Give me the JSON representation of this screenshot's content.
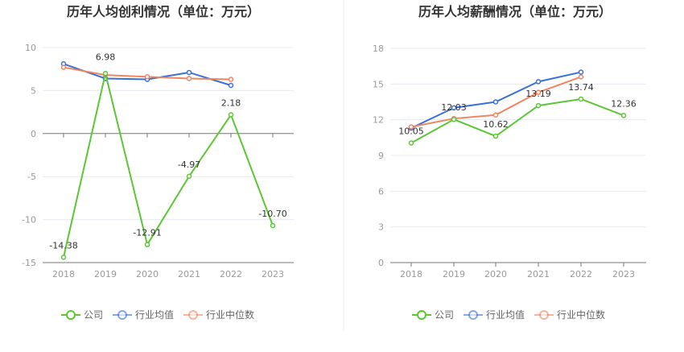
{
  "chart_data": [
    {
      "type": "line",
      "title": "历年人均创利情况（单位：万元）",
      "categories": [
        "2018",
        "2019",
        "2020",
        "2021",
        "2022",
        "2023"
      ],
      "ylim": [
        -15,
        10
      ],
      "yticks": [
        "10",
        "5",
        "0",
        "-5",
        "-10",
        "-15"
      ],
      "grid": true,
      "legend_position": "bottom",
      "series": [
        {
          "name": "公司",
          "color": "#5cc634",
          "values": [
            -14.38,
            6.98,
            -12.91,
            -4.97,
            2.18,
            -10.7
          ],
          "labels": [
            "-14.38",
            "6.98",
            "-12.91",
            "-4.97",
            "2.18",
            "-10.70"
          ]
        },
        {
          "name": "行业均值",
          "color": "#3a6fd8",
          "values": [
            8.1,
            6.4,
            6.3,
            7.1,
            5.6,
            null
          ]
        },
        {
          "name": "行业中位数",
          "color": "#f0845f",
          "values": [
            7.7,
            6.8,
            6.6,
            6.4,
            6.3,
            null
          ]
        }
      ]
    },
    {
      "type": "line",
      "title": "历年人均薪酬情况（单位：万元）",
      "categories": [
        "2018",
        "2019",
        "2020",
        "2021",
        "2022",
        "2023"
      ],
      "ylim": [
        0,
        18
      ],
      "yticks": [
        "18",
        "15",
        "12",
        "9",
        "6",
        "3",
        "0"
      ],
      "grid": true,
      "legend_position": "bottom",
      "series": [
        {
          "name": "公司",
          "color": "#5cc634",
          "values": [
            10.05,
            12.03,
            10.62,
            13.19,
            13.74,
            12.36
          ],
          "labels": [
            "10.05",
            "12.03",
            "10.62",
            "13.19",
            "13.74",
            "12.36"
          ]
        },
        {
          "name": "行业均值",
          "color": "#3a6fd8",
          "values": [
            11.3,
            13.0,
            13.5,
            15.2,
            16.0,
            null
          ]
        },
        {
          "name": "行业中位数",
          "color": "#f0845f",
          "values": [
            11.4,
            12.1,
            12.4,
            14.3,
            15.6,
            null
          ]
        }
      ]
    }
  ]
}
